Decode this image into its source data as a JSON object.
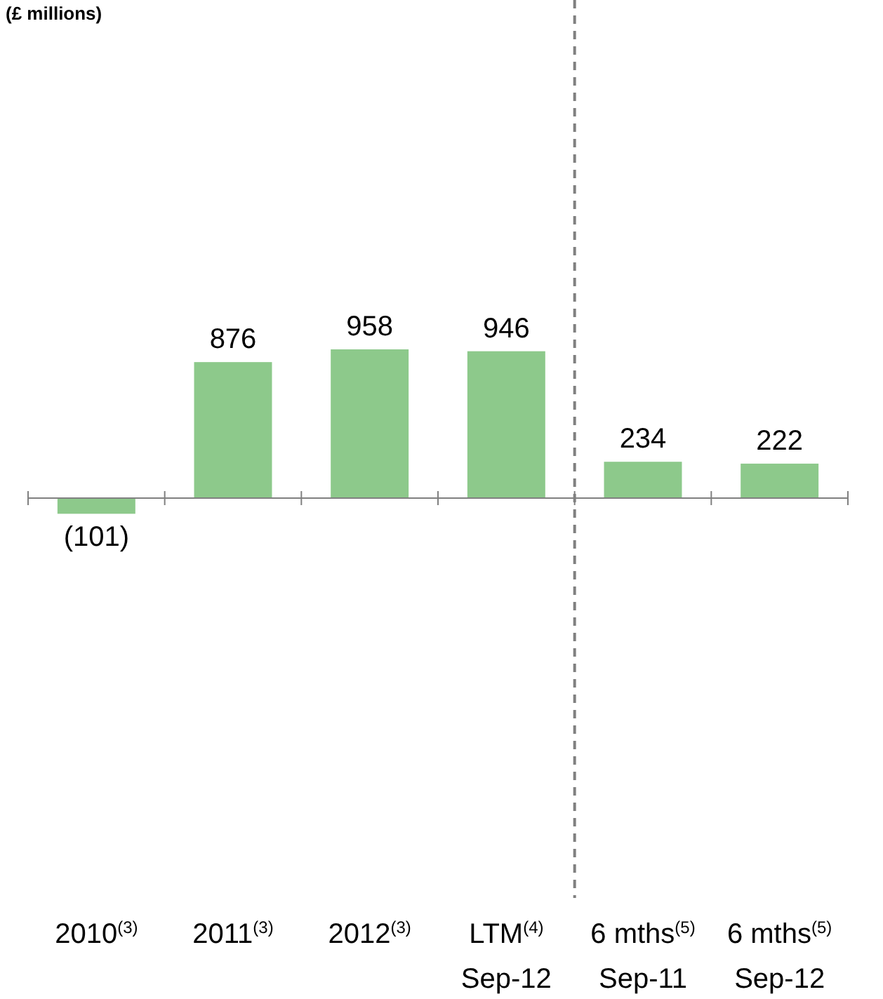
{
  "chart_data": {
    "type": "bar",
    "title": "(£ millions)",
    "categories": [
      "2010$^{(3)}$",
      "2011$^{(3)}$",
      "2012$^{(3)}$",
      "LTM$^{(4)}$\nSep-12",
      "6 mths$^{(5)}$\nSep-11",
      "6 mths$^{(5)}$\nSep-12"
    ],
    "values": [
      -101,
      876,
      958,
      946,
      234,
      222
    ],
    "value_labels": [
      "(101)",
      "876",
      "958",
      "946",
      "234",
      "222"
    ],
    "color": "#8dc98b"
  }
}
